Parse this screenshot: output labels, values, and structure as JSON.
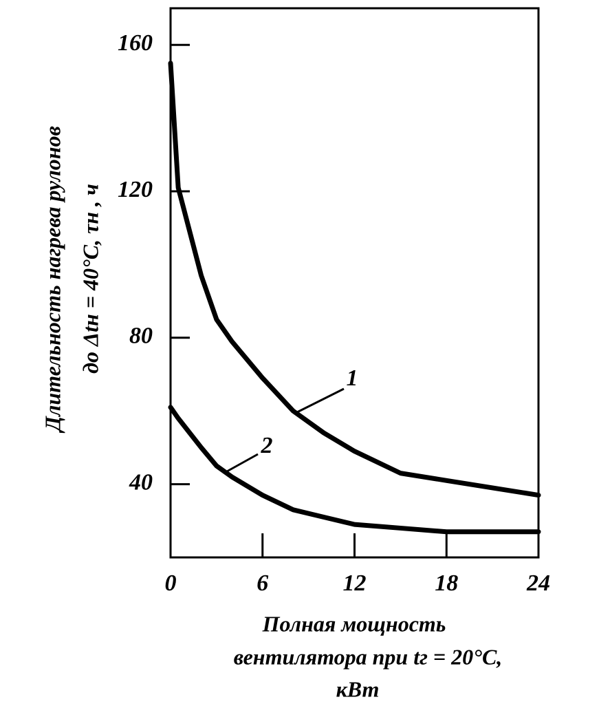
{
  "chart_data": {
    "type": "line",
    "y_label": [
      "Длительность нагрева рулонов",
      "до Δtн = 40°C, τн , ч"
    ],
    "x_label": [
      "Полная мощность",
      "вентилятора при tг = 20°C,",
      "кВт"
    ],
    "x": [
      0,
      0.5,
      2,
      3,
      4,
      6,
      8,
      10,
      12,
      15,
      18,
      21,
      24
    ],
    "series": [
      {
        "name": "1",
        "color": "#000000",
        "values": [
          155,
          121,
          97,
          85,
          79,
          69,
          60,
          54,
          49,
          43,
          41,
          39,
          37
        ]
      },
      {
        "name": "2",
        "color": "#000000",
        "values": [
          61,
          58,
          50,
          45,
          42,
          37,
          33,
          31,
          29,
          28,
          27,
          27,
          27
        ]
      }
    ],
    "xlim": [
      0,
      24
    ],
    "xticks": [
      0,
      6,
      12,
      18,
      24
    ],
    "ylim": [
      20,
      170
    ],
    "yticks": [
      40,
      80,
      120,
      160
    ]
  }
}
